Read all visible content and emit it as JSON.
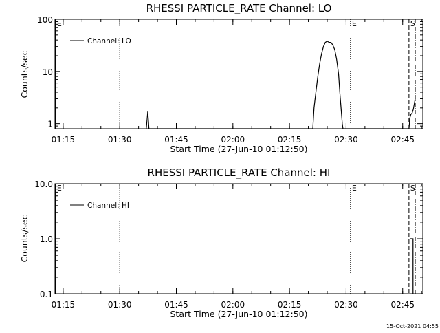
{
  "page": {
    "timestamp": "15-Oct-2021 04:55"
  },
  "chart_data": [
    {
      "type": "line",
      "title": "RHESSI PARTICLE_RATE Channel: LO",
      "xlabel": "Start Time (27-Jun-10 01:12:50)",
      "ylabel": "Counts/sec",
      "xlim": [
        "01:12:50",
        "02:50:20"
      ],
      "yscale": "log",
      "ylim": [
        0.8,
        100
      ],
      "x_ticks": [
        "01:15",
        "01:30",
        "01:45",
        "02:00",
        "02:15",
        "02:30",
        "02:45"
      ],
      "y_ticks": [
        "1",
        "10",
        "100"
      ],
      "legend": {
        "position": "top-left",
        "entries": [
          "Channel: LO"
        ]
      },
      "series": [
        {
          "name": "Channel: LO",
          "points": [
            [
              "01:37:02",
              0.8
            ],
            [
              "01:37:15",
              1.2
            ],
            [
              "01:37:25",
              1.7
            ],
            [
              "01:37:35",
              1.2
            ],
            [
              "01:37:45",
              0.8
            ],
            [
              "02:21:10",
              0.8
            ],
            [
              "02:21:30",
              2.0
            ],
            [
              "02:22:00",
              4.0
            ],
            [
              "02:22:30",
              8.0
            ],
            [
              "02:23:00",
              14.0
            ],
            [
              "02:23:30",
              22.0
            ],
            [
              "02:24:00",
              30.0
            ],
            [
              "02:24:30",
              36.0
            ],
            [
              "02:25:00",
              38.0
            ],
            [
              "02:25:30",
              36.0
            ],
            [
              "02:26:00",
              36.0
            ],
            [
              "02:26:30",
              32.0
            ],
            [
              "02:27:00",
              26.0
            ],
            [
              "02:27:30",
              17.0
            ],
            [
              "02:28:00",
              9.0
            ],
            [
              "02:28:20",
              4.0
            ],
            [
              "02:28:40",
              2.0
            ],
            [
              "02:29:00",
              1.0
            ],
            [
              "02:29:10",
              0.8
            ],
            [
              "02:46:40",
              0.8
            ],
            [
              "02:46:55",
              1.3
            ],
            [
              "02:47:10",
              1.5
            ],
            [
              "02:47:30",
              1.6
            ],
            [
              "02:47:50",
              1.9
            ],
            [
              "02:48:10",
              2.6
            ],
            [
              "02:48:20",
              3.0
            ]
          ]
        }
      ],
      "markers": [
        {
          "time": "01:13:00",
          "label": "E",
          "style": "solid"
        },
        {
          "time": "01:30:00",
          "label": "",
          "style": "dotted"
        },
        {
          "time": "02:31:10",
          "label": "E",
          "style": "dotted"
        },
        {
          "time": "02:46:40",
          "label": "S",
          "style": "dashed"
        },
        {
          "time": "02:48:20",
          "label": "",
          "style": "dash-dot"
        }
      ]
    },
    {
      "type": "line",
      "title": "RHESSI PARTICLE_RATE Channel: HI",
      "xlabel": "Start Time (27-Jun-10 01:12:50)",
      "ylabel": "Counts/sec",
      "xlim": [
        "01:12:50",
        "02:50:20"
      ],
      "yscale": "log",
      "ylim": [
        0.1,
        10
      ],
      "x_ticks": [
        "01:15",
        "01:30",
        "01:45",
        "02:00",
        "02:15",
        "02:30",
        "02:45"
      ],
      "y_ticks": [
        "0.1",
        "1.0",
        "10.0"
      ],
      "legend": {
        "position": "top-left",
        "entries": [
          "Channel: HI"
        ]
      },
      "series": [
        {
          "name": "Channel: HI",
          "points": [
            [
              "02:47:02",
              1.0
            ],
            [
              "02:47:45",
              1.0
            ],
            [
              "02:47:45",
              0.1
            ]
          ]
        }
      ],
      "markers": [
        {
          "time": "01:13:00",
          "label": "E",
          "style": "solid"
        },
        {
          "time": "01:30:00",
          "label": "",
          "style": "dotted"
        },
        {
          "time": "02:31:10",
          "label": "E",
          "style": "dotted"
        },
        {
          "time": "02:46:40",
          "label": "S",
          "style": "dashed"
        },
        {
          "time": "02:48:20",
          "label": "",
          "style": "dash-dot"
        }
      ]
    }
  ]
}
